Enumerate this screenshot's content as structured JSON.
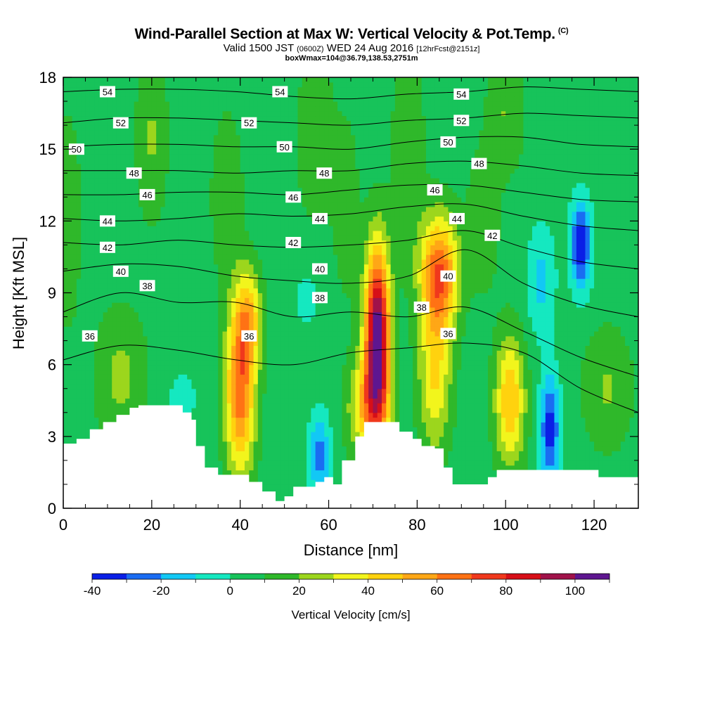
{
  "header": {
    "title": "Wind-Parallel Section at Max W: Vertical Velocity & Pot.Temp.",
    "copyright": "(C)",
    "valid_main": "Valid 1500 JST",
    "valid_utc": "(0600Z)",
    "valid_date": "WED 24 Aug 2016",
    "forecast": "[12hrFcst@2151z]",
    "box": "boxWmax=104@36.79,138.53,2751m"
  },
  "chart_data": {
    "type": "heatmap",
    "xlabel": "Distance [nm]",
    "ylabel": "Height [Kft MSL]",
    "xlim": [
      0,
      130
    ],
    "ylim": [
      0,
      18
    ],
    "x_ticks": [
      0,
      20,
      40,
      60,
      80,
      100,
      120
    ],
    "y_ticks": [
      0,
      3,
      6,
      9,
      12,
      15,
      18
    ],
    "colorbar": {
      "label": "Vertical Velocity [cm/s]",
      "range": [
        -40,
        110
      ],
      "step": 10,
      "tick_values": [
        -40,
        -20,
        0,
        20,
        40,
        60,
        80,
        100
      ],
      "colors": [
        "#0a1fe6",
        "#1a6cf2",
        "#12c8f5",
        "#15e8c0",
        "#17c35a",
        "#2fb82a",
        "#9cd61d",
        "#f2f51c",
        "#ffd20e",
        "#ffa716",
        "#ff7214",
        "#f0381c",
        "#d70f18",
        "#a0124a",
        "#5e1690"
      ]
    },
    "background_value": 5,
    "velocity_cells": [
      {
        "x": 40,
        "y": 5.0,
        "sx": 2.4,
        "sy": 2.5,
        "w": 62
      },
      {
        "x": 42,
        "y": 8.0,
        "sx": 2.0,
        "sy": 1.4,
        "w": 35
      },
      {
        "x": 71,
        "y": 7.2,
        "sx": 2.0,
        "sy": 2.6,
        "w": 104
      },
      {
        "x": 69,
        "y": 4.2,
        "sx": 3.2,
        "sy": 1.5,
        "w": 40
      },
      {
        "x": 85,
        "y": 9.8,
        "sx": 3.0,
        "sy": 1.7,
        "w": 65
      },
      {
        "x": 84,
        "y": 5.5,
        "sx": 2.6,
        "sy": 2.2,
        "w": 35
      },
      {
        "x": 101,
        "y": 4.5,
        "sx": 2.4,
        "sy": 1.9,
        "w": 45
      },
      {
        "x": 117,
        "y": 11.0,
        "sx": 1.6,
        "sy": 1.3,
        "w": -45
      },
      {
        "x": 110,
        "y": 3.3,
        "sx": 1.6,
        "sy": 1.6,
        "w": -40
      },
      {
        "x": 58,
        "y": 2.2,
        "sx": 1.7,
        "sy": 1.2,
        "w": -30
      },
      {
        "x": 108,
        "y": 9.5,
        "sx": 2.2,
        "sy": 1.6,
        "w": -18
      },
      {
        "x": 27,
        "y": 4.6,
        "sx": 2.5,
        "sy": 0.8,
        "w": -10
      },
      {
        "x": 55,
        "y": 8.8,
        "sx": 2.5,
        "sy": 1.0,
        "w": -8
      },
      {
        "x": 13,
        "y": 5.5,
        "sx": 4.0,
        "sy": 2.0,
        "w": 18
      },
      {
        "x": 123,
        "y": 5.0,
        "sx": 4.0,
        "sy": 1.8,
        "w": 16
      },
      {
        "x": 20,
        "y": 15.5,
        "sx": 2.5,
        "sy": 2.5,
        "w": 16
      },
      {
        "x": 57,
        "y": 15.5,
        "sx": 3.0,
        "sy": 2.5,
        "w": 14
      },
      {
        "x": 78,
        "y": 15.0,
        "sx": 2.5,
        "sy": 3.0,
        "w": 15
      },
      {
        "x": 100,
        "y": 16.5,
        "sx": 3.0,
        "sy": 1.8,
        "w": 15
      },
      {
        "x": 37,
        "y": 13.0,
        "sx": 2.5,
        "sy": 2.5,
        "w": 14
      },
      {
        "x": 1,
        "y": 12.0,
        "sx": 2.0,
        "sy": 3.0,
        "w": 15
      },
      {
        "x": 64,
        "y": 12.5,
        "sx": 2.0,
        "sy": 2.5,
        "w": 13
      },
      {
        "x": 95,
        "y": 12.0,
        "sx": 2.5,
        "sy": 2.0,
        "w": 14
      }
    ],
    "terrain": [
      [
        0,
        2.7
      ],
      [
        3,
        2.9
      ],
      [
        6,
        3.3
      ],
      [
        9,
        3.6
      ],
      [
        12,
        3.9
      ],
      [
        15,
        4.2
      ],
      [
        17,
        4.3
      ],
      [
        22,
        4.3
      ],
      [
        27,
        4.0
      ],
      [
        29,
        3.7
      ],
      [
        30,
        2.6
      ],
      [
        32,
        1.7
      ],
      [
        35,
        1.4
      ],
      [
        40,
        1.4
      ],
      [
        42,
        1.1
      ],
      [
        45,
        0.7
      ],
      [
        48,
        0.3
      ],
      [
        50,
        0.5
      ],
      [
        52,
        0.9
      ],
      [
        57,
        1.1
      ],
      [
        59,
        1.3
      ],
      [
        61,
        1.0
      ],
      [
        63,
        2.0
      ],
      [
        66,
        3.0
      ],
      [
        68,
        3.6
      ],
      [
        73,
        3.6
      ],
      [
        76,
        3.2
      ],
      [
        79,
        2.9
      ],
      [
        81,
        2.6
      ],
      [
        84,
        2.5
      ],
      [
        86,
        1.7
      ],
      [
        88,
        1.0
      ],
      [
        93,
        1.0
      ],
      [
        96,
        1.3
      ],
      [
        98,
        1.6
      ],
      [
        120,
        1.6
      ],
      [
        121,
        1.3
      ],
      [
        130,
        1.3
      ]
    ],
    "theta_levels": [
      36,
      38,
      40,
      42,
      44,
      46,
      48,
      50,
      52,
      54
    ],
    "theta_contours": [
      {
        "z": [
          6.2,
          6.8,
          6.6,
          6.2,
          6.0,
          6.5,
          6.7,
          6.9,
          6.5,
          5.0,
          4.0
        ]
      },
      {
        "z": [
          8.2,
          9.0,
          8.6,
          8.6,
          8.0,
          8.2,
          8.0,
          8.4,
          7.4,
          6.3,
          5.5
        ]
      },
      {
        "z": [
          9.9,
          10.2,
          10.1,
          9.7,
          9.5,
          9.4,
          9.7,
          10.8,
          9.4,
          8.5,
          8.0
        ]
      },
      {
        "z": [
          11.1,
          11.0,
          11.2,
          11.0,
          10.9,
          11.0,
          11.2,
          11.6,
          10.9,
          10.3,
          10.0
        ]
      },
      {
        "z": [
          12.1,
          12.0,
          12.1,
          12.3,
          12.2,
          12.3,
          12.6,
          12.7,
          12.2,
          11.8,
          11.6
        ]
      },
      {
        "z": [
          13.1,
          13.1,
          13.2,
          13.2,
          13.1,
          13.3,
          13.5,
          13.5,
          13.2,
          12.9,
          12.8
        ]
      },
      {
        "z": [
          14.1,
          14.1,
          14.1,
          14.0,
          14.1,
          14.1,
          14.4,
          14.5,
          14.3,
          14.0,
          13.9
        ]
      },
      {
        "z": [
          15.1,
          15.2,
          15.2,
          15.1,
          15.1,
          15.0,
          15.3,
          15.5,
          15.5,
          15.2,
          15.1
        ]
      },
      {
        "z": [
          16.1,
          16.3,
          16.3,
          16.2,
          16.1,
          16.0,
          16.2,
          16.3,
          16.5,
          16.4,
          16.3
        ]
      },
      {
        "z": [
          17.4,
          17.5,
          17.5,
          17.4,
          17.2,
          17.1,
          17.3,
          17.4,
          17.6,
          17.5,
          17.4
        ]
      }
    ],
    "contour_x": [
      0,
      13,
      26,
      39,
      52,
      65,
      78,
      91,
      104,
      117,
      130
    ],
    "theta_labels": [
      {
        "text": "54",
        "x": 10,
        "y": 17.4
      },
      {
        "text": "54",
        "x": 49,
        "y": 17.4
      },
      {
        "text": "54",
        "x": 90,
        "y": 17.3
      },
      {
        "text": "52",
        "x": 13,
        "y": 16.1
      },
      {
        "text": "52",
        "x": 42,
        "y": 16.1
      },
      {
        "text": "52",
        "x": 90,
        "y": 16.2
      },
      {
        "text": "50",
        "x": 3,
        "y": 15.0
      },
      {
        "text": "50",
        "x": 50,
        "y": 15.1
      },
      {
        "text": "50",
        "x": 87,
        "y": 15.3
      },
      {
        "text": "48",
        "x": 16,
        "y": 14.0
      },
      {
        "text": "48",
        "x": 59,
        "y": 14.0
      },
      {
        "text": "48",
        "x": 94,
        "y": 14.4
      },
      {
        "text": "46",
        "x": 19,
        "y": 13.1
      },
      {
        "text": "46",
        "x": 52,
        "y": 13.0
      },
      {
        "text": "46",
        "x": 84,
        "y": 13.3
      },
      {
        "text": "44",
        "x": 10,
        "y": 12.0
      },
      {
        "text": "44",
        "x": 58,
        "y": 12.1
      },
      {
        "text": "44",
        "x": 89,
        "y": 12.1
      },
      {
        "text": "42",
        "x": 10,
        "y": 10.9
      },
      {
        "text": "42",
        "x": 52,
        "y": 11.1
      },
      {
        "text": "42",
        "x": 97,
        "y": 11.4
      },
      {
        "text": "40",
        "x": 13,
        "y": 9.9
      },
      {
        "text": "40",
        "x": 58,
        "y": 10.0
      },
      {
        "text": "40",
        "x": 87,
        "y": 9.7
      },
      {
        "text": "38",
        "x": 19,
        "y": 9.3
      },
      {
        "text": "38",
        "x": 58,
        "y": 8.8
      },
      {
        "text": "38",
        "x": 81,
        "y": 8.4
      },
      {
        "text": "36",
        "x": 6,
        "y": 7.2
      },
      {
        "text": "36",
        "x": 42,
        "y": 7.2
      },
      {
        "text": "36",
        "x": 87,
        "y": 7.3
      }
    ]
  }
}
